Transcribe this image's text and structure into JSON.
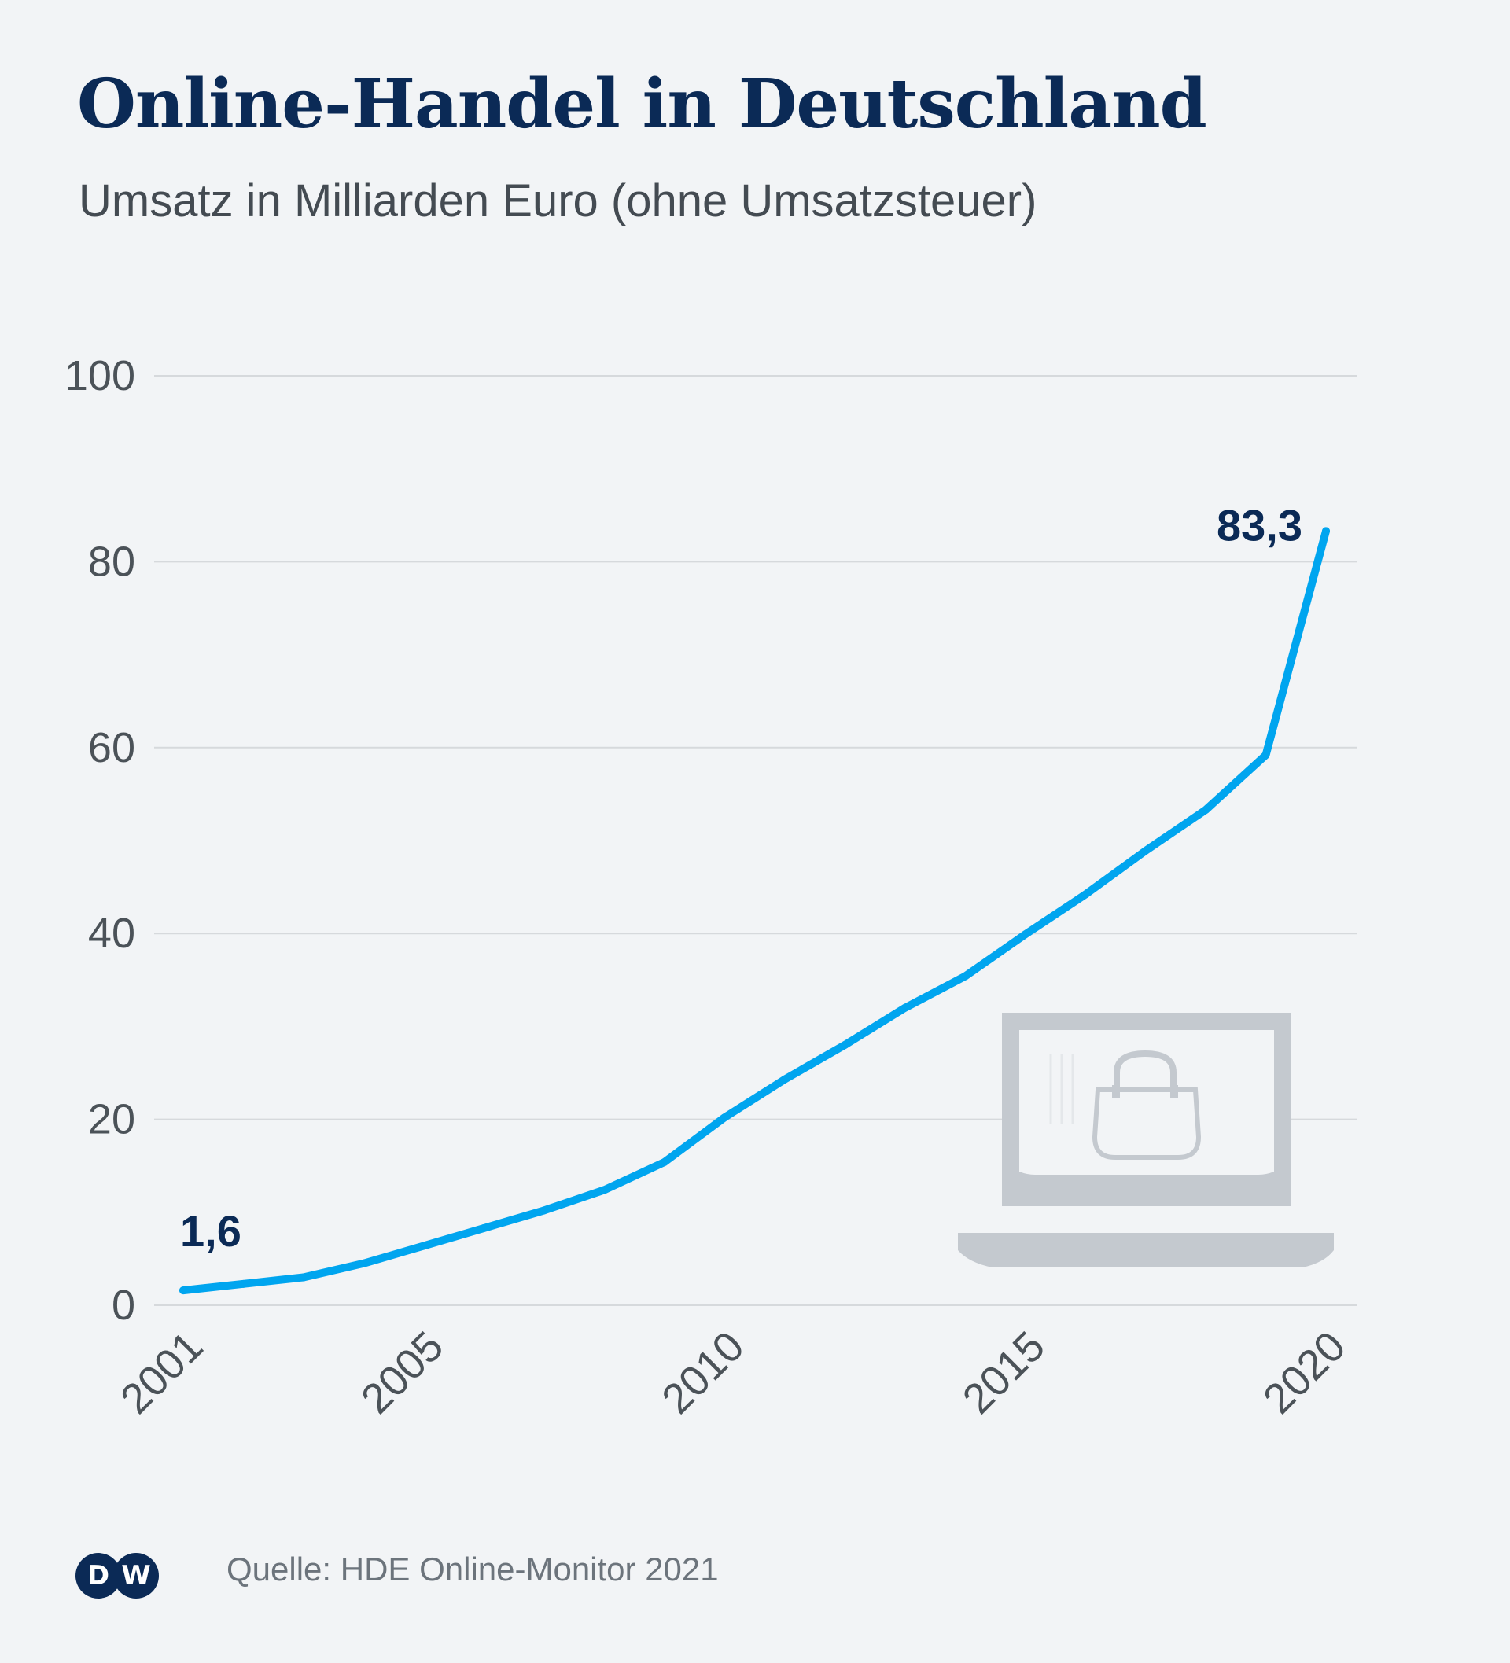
{
  "header": {
    "title": "Online-Handel in Deutschland",
    "subtitle": "Umsatz in Milliarden Euro (ohne Umsatzsteuer)"
  },
  "footer": {
    "logo_text": [
      "D",
      "W"
    ],
    "source": "Quelle: HDE Online-Monitor 2021"
  },
  "colors": {
    "background": "#f2f4f6",
    "line": "#00a5ef",
    "title": "#0b2a56",
    "icon": "#c4c9cf"
  },
  "icons": {
    "illustration": "laptop-shopping-bag-icon"
  },
  "chart_data": {
    "type": "line",
    "title": "Online-Handel in Deutschland",
    "subtitle": "Umsatz in Milliarden Euro (ohne Umsatzsteuer)",
    "xlabel": "",
    "ylabel": "",
    "x": [
      2001,
      2002,
      2003,
      2004,
      2005,
      2006,
      2007,
      2008,
      2009,
      2010,
      2011,
      2012,
      2013,
      2014,
      2015,
      2016,
      2017,
      2018,
      2019,
      2020
    ],
    "series": [
      {
        "name": "Umsatz",
        "values": [
          1.6,
          2.3,
          3.0,
          4.5,
          6.4,
          8.3,
          10.2,
          12.4,
          15.4,
          20.2,
          24.3,
          28.0,
          32.0,
          35.4,
          39.9,
          44.2,
          48.9,
          53.3,
          59.2,
          83.3
        ]
      }
    ],
    "ylim": [
      0,
      100
    ],
    "yticks": [
      "0",
      "20",
      "40",
      "60",
      "80",
      "100"
    ],
    "xticks": [
      "2001",
      "2005",
      "2010",
      "2015",
      "2020"
    ],
    "annotations": [
      {
        "x": 2001,
        "label": "1,6"
      },
      {
        "x": 2020,
        "label": "83,3"
      }
    ],
    "grid": true
  }
}
